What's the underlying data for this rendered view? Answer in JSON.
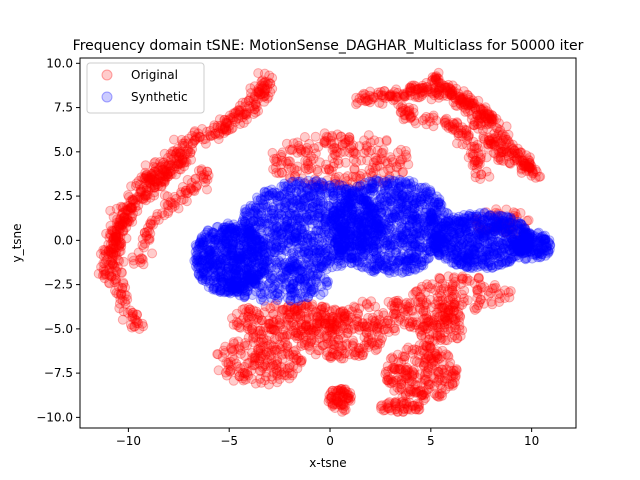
{
  "chart_data": {
    "type": "scatter",
    "title": "Frequency domain tSNE: MotionSense_DAGHAR_Multiclass for 50000 iter",
    "xlabel": "x-tsne",
    "ylabel": "y_tsne",
    "xlim": [
      -12.4,
      12.2
    ],
    "ylim": [
      -10.6,
      10.3
    ],
    "xticks": [
      -10,
      -5,
      0,
      5,
      10
    ],
    "yticks": [
      -10.0,
      -7.5,
      -5.0,
      -2.5,
      0.0,
      2.5,
      5.0,
      7.5,
      10.0
    ],
    "xtick_labels": [
      "−10",
      "−5",
      "0",
      "5",
      "10"
    ],
    "ytick_labels": [
      "−10.0",
      "−7.5",
      "−5.0",
      "−2.5",
      "0.0",
      "2.5",
      "5.0",
      "7.5",
      "10.0"
    ],
    "legend": {
      "placement": "top-left"
    },
    "grid": false,
    "series": [
      {
        "name": "Original",
        "color": "#ff0000",
        "alpha": 0.2,
        "regions": [
          {
            "kind": "path",
            "points": [
              [
                -9.5,
                -5.0
              ],
              [
                -10.2,
                -3.5
              ],
              [
                -10.8,
                -1.5
              ],
              [
                -10.5,
                0.5
              ],
              [
                -9.8,
                2.0
              ],
              [
                -9.0,
                3.5
              ],
              [
                -8.0,
                4.5
              ],
              [
                -7.0,
                5.5
              ],
              [
                -5.5,
                6.2
              ],
              [
                -4.5,
                7.0
              ],
              [
                -3.5,
                8.0
              ],
              [
                -3.2,
                9.1
              ]
            ],
            "count": 420,
            "spread": 0.45
          },
          {
            "kind": "path",
            "points": [
              [
                -11.2,
                -2.0
              ],
              [
                -10.8,
                0.0
              ],
              [
                -10.0,
                1.8
              ],
              [
                -8.8,
                3.0
              ],
              [
                -7.8,
                4.0
              ],
              [
                -7.0,
                4.8
              ]
            ],
            "count": 160,
            "spread": 0.35
          },
          {
            "kind": "path",
            "points": [
              [
                -9.6,
                -1.5
              ],
              [
                -9.0,
                0.5
              ],
              [
                -8.0,
                2.0
              ],
              [
                -6.8,
                3.0
              ],
              [
                -6.0,
                3.8
              ]
            ],
            "count": 90,
            "spread": 0.4
          },
          {
            "kind": "path",
            "points": [
              [
                1.5,
                8.0
              ],
              [
                3.0,
                8.2
              ],
              [
                4.5,
                8.5
              ],
              [
                6.0,
                8.3
              ],
              [
                7.5,
                7.4
              ],
              [
                8.5,
                6.0
              ],
              [
                9.5,
                4.5
              ],
              [
                10.2,
                3.8
              ]
            ],
            "count": 300,
            "spread": 0.4
          },
          {
            "kind": "path",
            "points": [
              [
                5.0,
                9.2
              ],
              [
                5.8,
                8.6
              ],
              [
                7.0,
                7.2
              ],
              [
                8.0,
                5.5
              ],
              [
                9.0,
                4.2
              ]
            ],
            "count": 120,
            "spread": 0.3
          },
          {
            "kind": "path",
            "points": [
              [
                3.5,
                7.5
              ],
              [
                4.0,
                7.0
              ],
              [
                5.5,
                6.8
              ],
              [
                6.5,
                6.2
              ],
              [
                7.2,
                5.0
              ],
              [
                7.6,
                3.5
              ]
            ],
            "count": 110,
            "spread": 0.35
          },
          {
            "kind": "blob",
            "cx": 0.5,
            "cy": 4.5,
            "rx": 3.5,
            "ry": 1.6,
            "count": 220
          },
          {
            "kind": "blob",
            "cx": -2.0,
            "cy": -4.5,
            "rx": 3.0,
            "ry": 1.0,
            "count": 220
          },
          {
            "kind": "blob",
            "cx": -3.5,
            "cy": -6.8,
            "rx": 2.2,
            "ry": 1.4,
            "count": 180
          },
          {
            "kind": "blob",
            "cx": 0.5,
            "cy": -5.5,
            "rx": 2.2,
            "ry": 1.2,
            "count": 160
          },
          {
            "kind": "blob",
            "cx": 4.5,
            "cy": -7.5,
            "rx": 1.8,
            "ry": 1.6,
            "count": 220
          },
          {
            "kind": "blob",
            "cx": 3.5,
            "cy": -4.2,
            "rx": 3.0,
            "ry": 1.0,
            "count": 160
          },
          {
            "kind": "blob",
            "cx": 6.5,
            "cy": -3.0,
            "rx": 2.5,
            "ry": 1.0,
            "count": 120
          },
          {
            "kind": "blob",
            "cx": 0.5,
            "cy": -9.0,
            "rx": 0.6,
            "ry": 0.7,
            "count": 70
          },
          {
            "kind": "blob",
            "cx": 3.5,
            "cy": -9.4,
            "rx": 1.2,
            "ry": 0.3,
            "count": 50
          },
          {
            "kind": "blob",
            "cx": 5.5,
            "cy": -5.0,
            "rx": 1.2,
            "ry": 0.8,
            "count": 60
          },
          {
            "kind": "blob",
            "cx": 8.5,
            "cy": 1.0,
            "rx": 1.4,
            "ry": 0.8,
            "count": 50
          }
        ]
      },
      {
        "name": "Synthetic",
        "color": "#0000ff",
        "alpha": 0.2,
        "regions": [
          {
            "kind": "blob",
            "cx": -5.0,
            "cy": -1.0,
            "rx": 1.8,
            "ry": 2.0,
            "count": 600
          },
          {
            "kind": "blob",
            "cx": -1.0,
            "cy": 0.8,
            "rx": 3.5,
            "ry": 2.6,
            "count": 900
          },
          {
            "kind": "blob",
            "cx": 3.0,
            "cy": 0.8,
            "rx": 3.0,
            "ry": 2.7,
            "count": 900
          },
          {
            "kind": "blob",
            "cx": 7.5,
            "cy": 0.0,
            "rx": 2.5,
            "ry": 1.6,
            "count": 600
          },
          {
            "kind": "blob",
            "cx": 10.0,
            "cy": -0.3,
            "rx": 1.0,
            "ry": 0.8,
            "count": 150
          },
          {
            "kind": "blob",
            "cx": -2.5,
            "cy": -2.5,
            "rx": 2.5,
            "ry": 1.0,
            "count": 200
          }
        ]
      }
    ]
  }
}
